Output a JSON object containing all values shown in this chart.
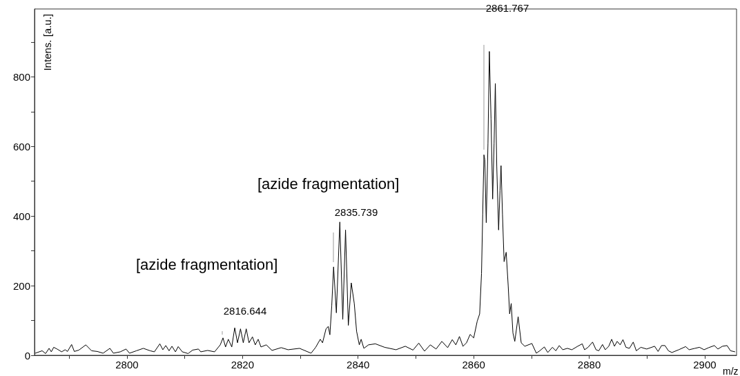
{
  "chart_data": {
    "type": "line",
    "xlabel": "m/z",
    "ylabel": "Intens. [a.u.]",
    "annotations": [
      "2861.767",
      "2835.739",
      "2816.644",
      "[azide fragmentation]",
      "[azide fragmentation]"
    ],
    "color": "#000000",
    "x": [
      2784.13,
      2785.32,
      2785.92,
      2786.52,
      2786.91,
      2787.32,
      2787.91,
      2788.7,
      2789.3,
      2789.7,
      2790.42,
      2790.89,
      2791.68,
      2792.88,
      2793.88,
      2794.87,
      2795.86,
      2797.05,
      2797.65,
      2798.84,
      2799.84,
      2800.44,
      2801.63,
      2802.83,
      2804.02,
      2804.74,
      2805.69,
      2806.21,
      2806.72,
      2807.28,
      2807.79,
      2808.39,
      2808.87,
      2809.58,
      2810.58,
      2811.37,
      2812.37,
      2812.77,
      2813.96,
      2815.16,
      2816.15,
      2816.62,
      2817.06,
      2817.54,
      2818.14,
      2818.65,
      2819.13,
      2819.65,
      2820.13,
      2820.64,
      2821.12,
      2821.72,
      2822.2,
      2822.71,
      2823.19,
      2824.11,
      2825.1,
      2826.69,
      2827.89,
      2829.87,
      2831.86,
      2832.66,
      2833.45,
      2833.85,
      2834.45,
      2834.84,
      2835.12,
      2835.44,
      2835.76,
      2836.24,
      2836.84,
      2837.35,
      2837.83,
      2838.31,
      2838.82,
      2839.34,
      2839.74,
      2840.21,
      2840.53,
      2841.0,
      2841.8,
      2842.99,
      2844.59,
      2846.57,
      2848.17,
      2849.5,
      2850.5,
      2851.5,
      2852.5,
      2853.5,
      2854.5,
      2855.5,
      2856.3,
      2856.92,
      2857.54,
      2858.15,
      2858.77,
      2859.39,
      2860.01,
      2860.62,
      2861.04,
      2861.36,
      2861.57,
      2861.78,
      2861.93,
      2862.18,
      2862.48,
      2862.72,
      2863.01,
      2863.29,
      2863.54,
      2863.75,
      2864.0,
      2864.32,
      2864.56,
      2864.74,
      2864.99,
      2865.27,
      2865.63,
      2865.98,
      2866.23,
      2866.5,
      2866.8,
      2867.12,
      2867.7,
      2868.23,
      2868.85,
      2870.08,
      2870.85,
      2871.44,
      2872.23,
      2872.83,
      2873.63,
      2874.22,
      2874.82,
      2875.42,
      2876.22,
      2877.0,
      2878.01,
      2878.79,
      2879.2,
      2879.8,
      2880.58,
      2881.18,
      2881.66,
      2882.3,
      2882.78,
      2883.38,
      2883.89,
      2884.37,
      2884.84,
      2885.36,
      2885.84,
      2886.36,
      2886.96,
      2887.62,
      2888.15,
      2888.94,
      2889.94,
      2890.81,
      2891.32,
      2891.92,
      2892.52,
      2893.11,
      2893.71,
      2894.31,
      2895.5,
      2896.69,
      2897.29,
      2898.29,
      2899.08,
      2899.88,
      2900.68,
      2901.67,
      2902.27,
      2903.07,
      2903.86,
      2904.46,
      2905.25
    ],
    "values": [
      6,
      13,
      5,
      20,
      10,
      23,
      18,
      10,
      16,
      11,
      31,
      11,
      15,
      30,
      13,
      11,
      6,
      20,
      6,
      10,
      18,
      6,
      13,
      20,
      13,
      10,
      33,
      16,
      28,
      13,
      26,
      10,
      25,
      10,
      5,
      15,
      18,
      10,
      14,
      10,
      30,
      50,
      24,
      46,
      24,
      79,
      36,
      76,
      36,
      76,
      36,
      53,
      30,
      46,
      24,
      30,
      14,
      22,
      16,
      20,
      6,
      23,
      46,
      36,
      76,
      83,
      59,
      142,
      254,
      122,
      383,
      103,
      360,
      86,
      208,
      149,
      69,
      30,
      46,
      20,
      30,
      33,
      23,
      16,
      26,
      15,
      35,
      12,
      30,
      18,
      40,
      22,
      45,
      30,
      54,
      26,
      36,
      60,
      50,
      98,
      119,
      235,
      406,
      576,
      562,
      381,
      610,
      873,
      679,
      449,
      610,
      781,
      543,
      360,
      473,
      545,
      406,
      269,
      296,
      200,
      119,
      149,
      64,
      40,
      111,
      36,
      26,
      34,
      6,
      13,
      24,
      8,
      23,
      13,
      28,
      16,
      20,
      16,
      26,
      33,
      16,
      23,
      38,
      16,
      13,
      31,
      16,
      26,
      46,
      26,
      40,
      30,
      45,
      23,
      20,
      38,
      13,
      23,
      18,
      23,
      26,
      11,
      28,
      28,
      13,
      8,
      16,
      25,
      16,
      20,
      23,
      16,
      22,
      28,
      18,
      26,
      28,
      13,
      10
    ],
    "xlim": [
      2784,
      2905.5
    ],
    "xticks": [
      {
        "value": 2790,
        "label": null
      },
      2800,
      {
        "value": 2810,
        "label": null
      },
      2820,
      {
        "value": 2830,
        "label": null
      },
      2840,
      {
        "value": 2850,
        "label": null
      },
      2860,
      {
        "value": 2870,
        "label": null
      },
      2880,
      {
        "value": 2890,
        "label": null
      },
      2900
    ],
    "ylim": [
      0,
      995
    ],
    "yticks": [
      0,
      {
        "value": 100,
        "label": null
      },
      200,
      {
        "value": 300,
        "label": null
      },
      400,
      {
        "value": 500,
        "label": null
      },
      600,
      {
        "value": 700,
        "label": null
      },
      800,
      {
        "value": 900,
        "label": null
      }
    ],
    "grid": false,
    "marker": "none",
    "line_style": "solid"
  }
}
